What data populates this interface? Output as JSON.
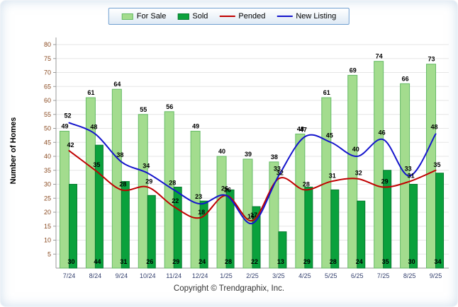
{
  "axes": {
    "y_title": "Number of Homes",
    "y_ticks": [
      5,
      10,
      15,
      20,
      25,
      30,
      35,
      40,
      45,
      50,
      55,
      60,
      65,
      70,
      75,
      80
    ]
  },
  "footer": {
    "copyright": "Copyright © Trendgraphix, Inc."
  },
  "chart_data": {
    "type": "bar",
    "title": "",
    "xlabel": "",
    "ylabel": "Number of Homes",
    "ylim": [
      0,
      80
    ],
    "grid": true,
    "legend_position": "top",
    "categories": [
      "7/24",
      "8/24",
      "9/24",
      "10/24",
      "11/24",
      "12/24",
      "1/25",
      "2/25",
      "3/25",
      "4/25",
      "5/25",
      "6/25",
      "7/25",
      "8/25",
      "9/25"
    ],
    "series": [
      {
        "name": "For Sale",
        "type": "bar",
        "color": "#a3dc8e",
        "border": "#66bb66",
        "values": [
          49,
          61,
          64,
          55,
          56,
          49,
          40,
          39,
          38,
          48,
          61,
          69,
          74,
          66,
          73
        ]
      },
      {
        "name": "Sold",
        "type": "bar",
        "color": "#0aa13c",
        "border": "#067a2e",
        "values": [
          30,
          44,
          31,
          26,
          29,
          24,
          28,
          22,
          13,
          29,
          28,
          24,
          35,
          30,
          34
        ]
      },
      {
        "name": "Pended",
        "type": "line",
        "color": "#c00000",
        "values": [
          42,
          35,
          28,
          29,
          22,
          18,
          26,
          17,
          32,
          28,
          31,
          32,
          29,
          31,
          35
        ]
      },
      {
        "name": "New Listing",
        "type": "line",
        "color": "#1414cc",
        "values": [
          52,
          48,
          38,
          34,
          28,
          23,
          26,
          16,
          33,
          47,
          45,
          40,
          46,
          33,
          48
        ]
      }
    ]
  }
}
